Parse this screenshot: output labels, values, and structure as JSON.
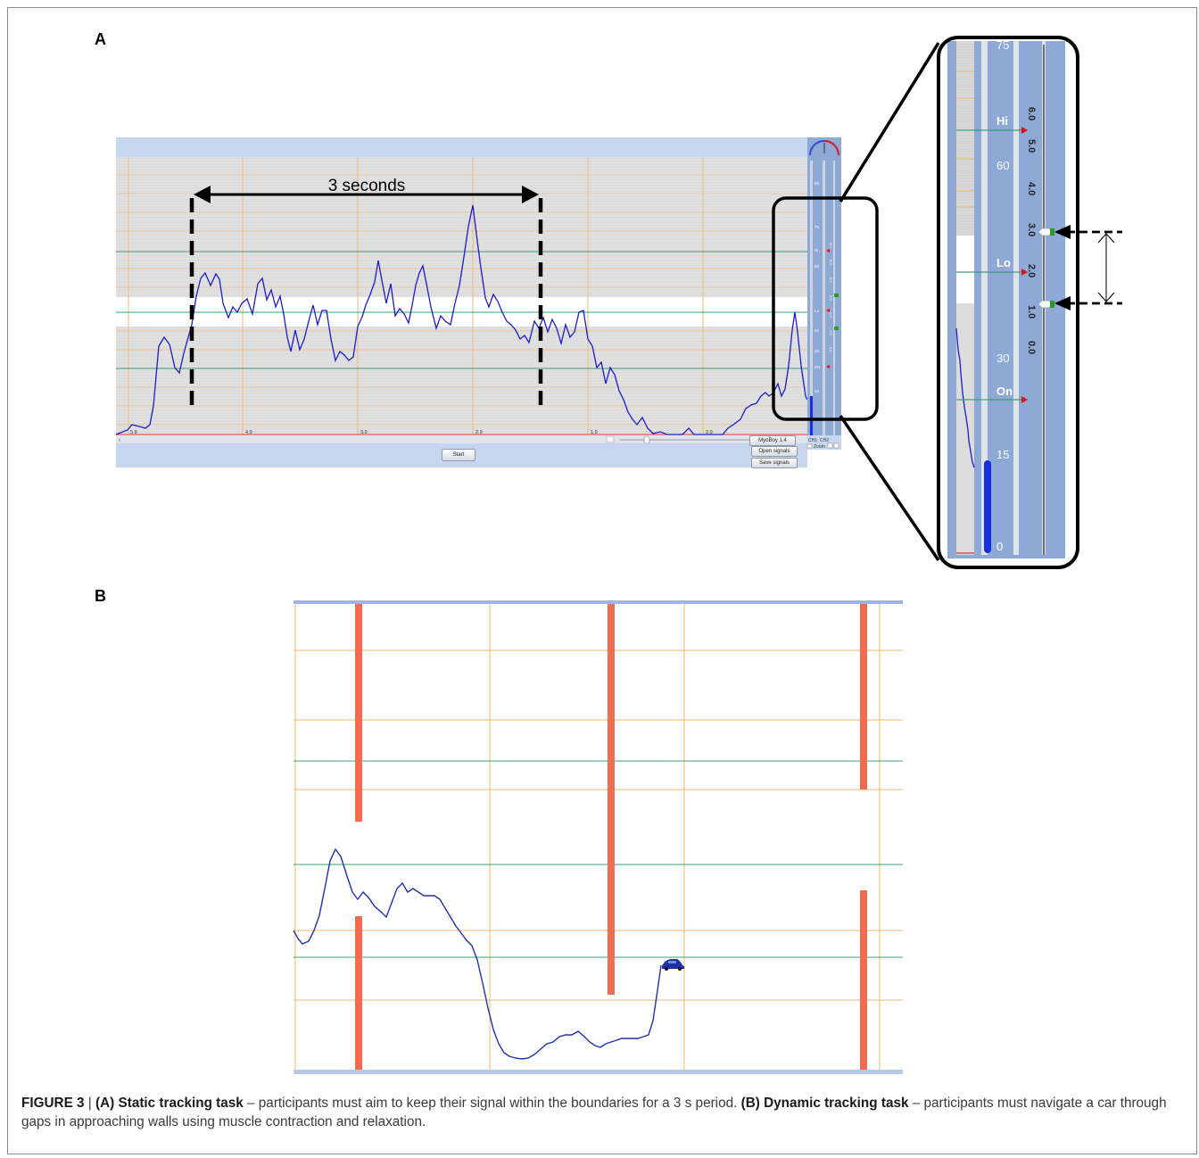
{
  "panel_a": {
    "label": "A",
    "annotation": "3 seconds",
    "app_footer": "MyoBoy 1.4",
    "buttons": {
      "start": "Start",
      "open_signals": "Open signals",
      "save_signals": "Save signals"
    },
    "x_tick_labels": [
      "5.9",
      "4.9",
      "3.9",
      "2.9",
      "1.9",
      "0.9"
    ],
    "channel_labels": [
      "CH1",
      "CH2"
    ],
    "zoom_label": "Zoom",
    "mini_scale_labels": [
      "90",
      "75",
      "Hi",
      "60",
      "Lo",
      "45",
      "30",
      "On",
      "15"
    ],
    "mini_bar_ticks": [
      "6.0",
      "5.0",
      "4.0",
      "3.0",
      "2.0",
      "1.0",
      "0.0"
    ],
    "zoom_scale_labels": [
      "75",
      "Hi",
      "60",
      "Lo",
      "30",
      "On",
      "15",
      "0"
    ],
    "zoom_bar_ticks": [
      "6.0",
      "5.0",
      "4.0",
      "3.0",
      "2.0",
      "1.0",
      "0.0"
    ],
    "colors": {
      "signal": "#1c1cc8",
      "panel_blue": "#8fa9d6",
      "grid_orange": "#f2b86e",
      "threshold_green": "#3aa07a",
      "marker_red": "#e01010"
    }
  },
  "panel_b": {
    "label": "B",
    "colors": {
      "wall": "#f26c50",
      "signal": "#2030b0",
      "car": "#1e2fa8"
    }
  },
  "caption": {
    "figure_label": "FIGURE 3",
    "separator": " | ",
    "a_label": "(A) Static tracking task",
    "a_text": " – participants must aim to keep their signal within the boundaries for a 3 s period. ",
    "b_label": "(B) Dynamic tracking task",
    "b_text": " – participants must navigate a car through gaps in approaching walls using muscle contraction and relaxation."
  }
}
